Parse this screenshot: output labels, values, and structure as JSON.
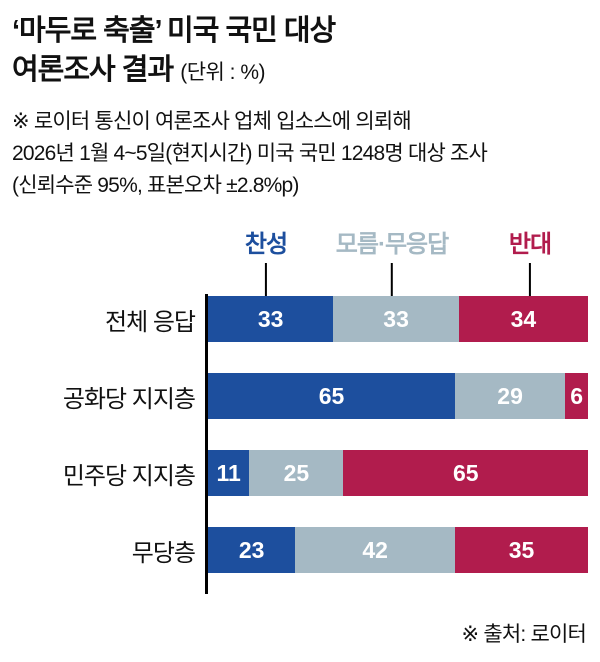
{
  "header": {
    "title_line1": "‘마두로 축출’ 미국 국민 대상",
    "title_line2": "여론조사 결과",
    "unit": "(단위 : %)"
  },
  "note": {
    "line1": "※ 로이터 통신이 여론조사 업체 입소스에 의뢰해",
    "line2": "2026년 1월 4~5일(현지시간) 미국 국민 1248명 대상 조사",
    "line3": "(신뢰수준 95%, 표본오차 ±2.8%p)"
  },
  "chart_data": {
    "type": "bar",
    "variant": "horizontal-stacked",
    "unit": "%",
    "xlim": [
      0,
      100
    ],
    "legend_position": "top",
    "categories": [
      "전체 응답",
      "공화당 지지층",
      "민주당 지지층",
      "무당층"
    ],
    "series": [
      {
        "name": "찬성",
        "key": "agree",
        "color": "#1d4f9e",
        "values": [
          33,
          65,
          11,
          23
        ]
      },
      {
        "name": "모름·무응답",
        "key": "unknown",
        "color": "#a5b9c4",
        "values": [
          33,
          29,
          25,
          42
        ]
      },
      {
        "name": "반대",
        "key": "oppose",
        "color": "#b11c4d",
        "values": [
          34,
          6,
          65,
          35
        ]
      }
    ]
  },
  "source": "※ 출처: 로이터",
  "colors": {
    "agree": "#1d4f9e",
    "unknown": "#a5b9c4",
    "oppose": "#b11c4d",
    "axis": "#000000",
    "text": "#111111",
    "background": "#ffffff"
  }
}
